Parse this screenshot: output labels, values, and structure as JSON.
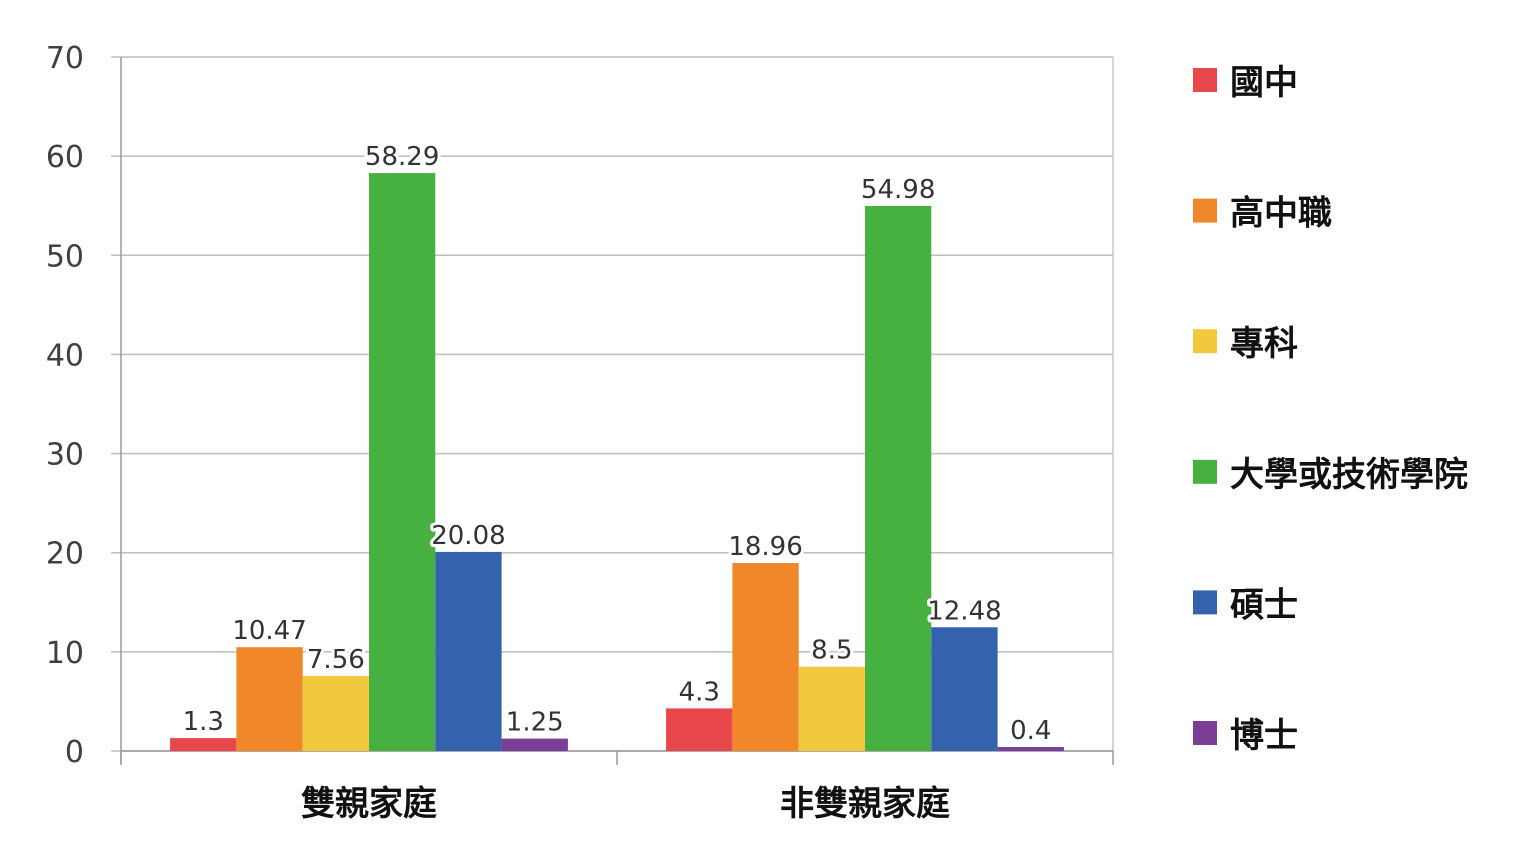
{
  "chart_data": {
    "type": "bar",
    "categories": [
      "雙親家庭",
      "非雙親家庭"
    ],
    "series": [
      {
        "name": "國中",
        "values": [
          1.3,
          4.3
        ],
        "color": "#e8474b"
      },
      {
        "name": "高中職",
        "values": [
          10.47,
          18.96
        ],
        "color": "#f0882a"
      },
      {
        "name": "專科",
        "values": [
          7.56,
          8.5
        ],
        "color": "#f2c83c"
      },
      {
        "name": "大學或技術學院",
        "values": [
          58.29,
          54.98
        ],
        "color": "#46b140"
      },
      {
        "name": "碩士",
        "values": [
          20.08,
          12.48
        ],
        "color": "#3462ae"
      },
      {
        "name": "博士",
        "values": [
          1.25,
          0.4
        ],
        "color": "#7b3e96"
      }
    ],
    "value_labels": [
      [
        "1.3",
        "4.3"
      ],
      [
        "10.47",
        "18.96"
      ],
      [
        "7.56",
        "8.5"
      ],
      [
        "58.29",
        "54.98"
      ],
      [
        "20.08",
        "12.48"
      ],
      [
        "1.25",
        "0.4"
      ]
    ],
    "yticks": [
      0,
      10,
      20,
      30,
      40,
      50,
      60,
      70
    ],
    "ylim": [
      0,
      70
    ],
    "grid": true,
    "legend_position": "right",
    "title": "",
    "xlabel": "",
    "ylabel": ""
  }
}
